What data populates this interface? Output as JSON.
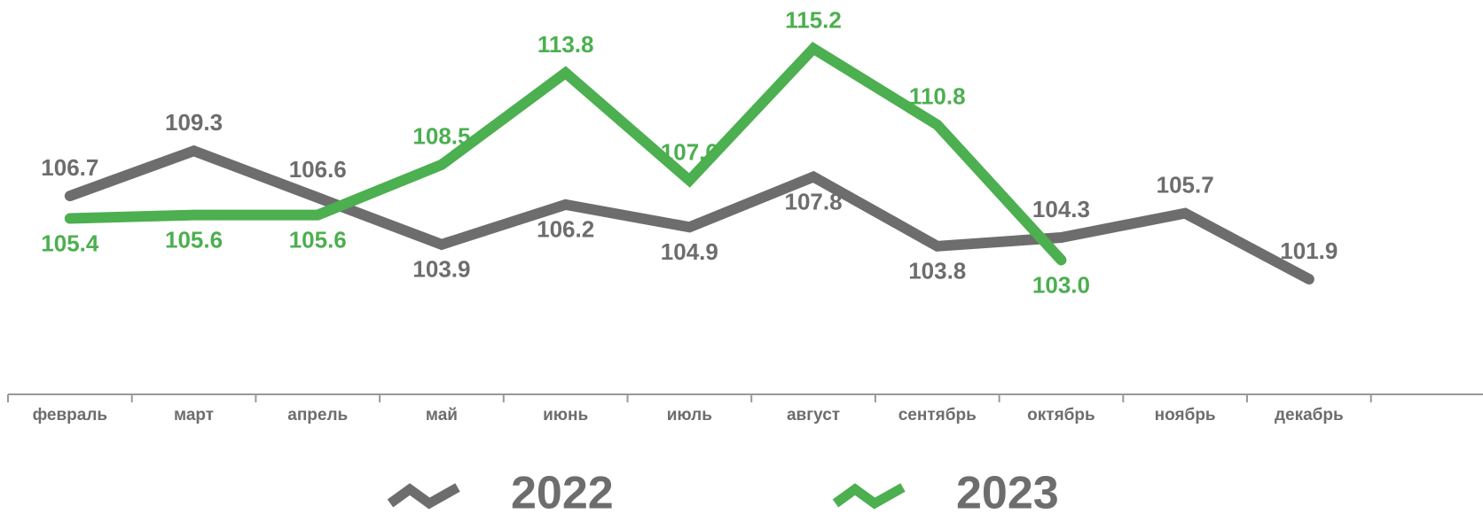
{
  "chart_data": {
    "type": "line",
    "categories": [
      "февраль",
      "март",
      "апрель",
      "май",
      "июнь",
      "июль",
      "август",
      "сентябрь",
      "октябрь",
      "ноябрь",
      "декабрь",
      null
    ],
    "series": [
      {
        "name": "2022",
        "color": "#6d6d6d",
        "values": [
          106.7,
          109.3,
          106.6,
          103.9,
          106.2,
          104.9,
          107.8,
          103.8,
          104.3,
          105.7,
          101.9,
          null
        ],
        "value_labels": [
          "106.7",
          "109.3",
          "106.6",
          "103.9",
          "106.2",
          "104.9",
          "107.8",
          "103.8",
          "104.3",
          "105.7",
          "101.9",
          null
        ]
      },
      {
        "name": "2023",
        "color": "#4caf50",
        "values": [
          105.4,
          105.6,
          105.6,
          108.5,
          113.8,
          107.6,
          115.2,
          110.8,
          103.0,
          null,
          null,
          null
        ],
        "value_labels": [
          "105.4",
          "105.6",
          "105.6",
          "108.5",
          "113.8",
          "107.6",
          "115.2",
          "110.8",
          "103.0",
          null,
          null,
          null
        ]
      }
    ],
    "ylim": [
      95,
      118
    ]
  }
}
